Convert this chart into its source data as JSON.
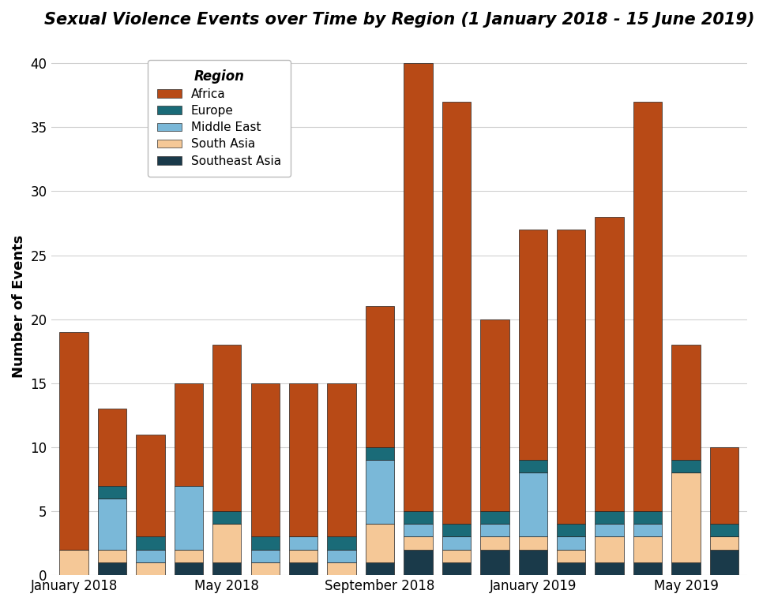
{
  "title": "Sexual Violence Events over Time by Region (1 January 2018 - 15 June 2019)",
  "ylabel": "Number of Events",
  "xlabel": "",
  "background_color": "#ffffff",
  "grid_color": "#d0d0d0",
  "tick_labels": [
    "January 2018",
    "May 2018",
    "September 2018",
    "January 2019",
    "May 2019"
  ],
  "tick_positions": [
    0,
    4,
    8,
    12,
    16
  ],
  "colors": {
    "Africa": "#b84a16",
    "Europe": "#1a6b78",
    "Middle East": "#7ab8d8",
    "South Asia": "#f5c897",
    "Southeast Asia": "#1a3a4a"
  },
  "southeast_asia": [
    0,
    1,
    0,
    1,
    1,
    0,
    1,
    0,
    1,
    2,
    1,
    2,
    2,
    1,
    1,
    1,
    1,
    2
  ],
  "south_asia": [
    2,
    1,
    1,
    1,
    3,
    1,
    1,
    1,
    3,
    1,
    1,
    1,
    1,
    1,
    2,
    2,
    7,
    1
  ],
  "middle_east": [
    0,
    4,
    1,
    5,
    0,
    1,
    1,
    1,
    5,
    1,
    1,
    1,
    5,
    1,
    1,
    1,
    0,
    0
  ],
  "europe": [
    0,
    1,
    1,
    0,
    1,
    1,
    0,
    1,
    1,
    1,
    1,
    1,
    1,
    1,
    1,
    1,
    1,
    1
  ],
  "totals": [
    19,
    13,
    11,
    15,
    18,
    15,
    15,
    15,
    21,
    40,
    37,
    20,
    27,
    27,
    28,
    37,
    18,
    10
  ],
  "ylim": [
    0,
    42
  ],
  "yticks": [
    0,
    5,
    10,
    15,
    20,
    25,
    30,
    35,
    40
  ],
  "legend_title": "Region",
  "title_fontsize": 15,
  "label_fontsize": 13,
  "tick_fontsize": 12,
  "legend_fontsize": 11,
  "bar_width": 0.75
}
